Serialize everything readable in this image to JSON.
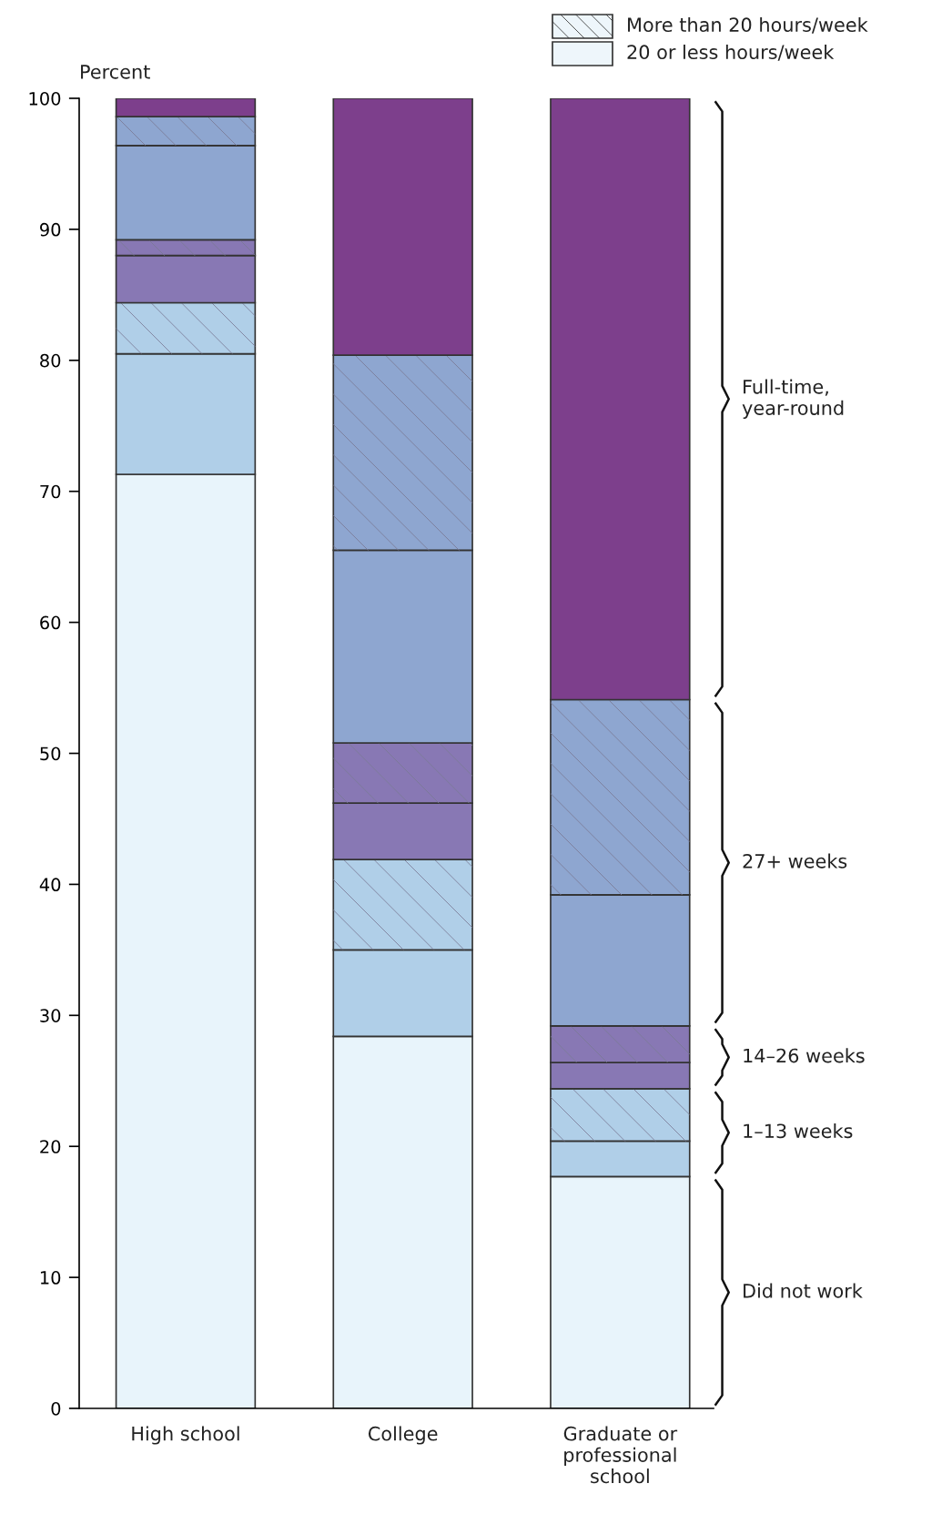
{
  "chart_data": {
    "type": "bar",
    "stacked": true,
    "ylabel": "Percent",
    "categories": [
      "High school",
      "College",
      "Graduate or professional school"
    ],
    "ylim": [
      0,
      100
    ],
    "yticks": [
      0,
      10,
      20,
      30,
      40,
      50,
      60,
      70,
      80,
      90,
      100
    ],
    "grid": false,
    "series": [
      {
        "color": "#e8f4fb",
        "values": [
          71.3,
          28.4,
          17.7
        ]
      },
      {
        "color": "#b0cfe8",
        "values": [
          9.2,
          6.6,
          2.7
        ]
      },
      {
        "color": "#b0cfe8",
        "values": [
          3.9,
          6.9,
          4.0
        ]
      },
      {
        "color": "#8878b4",
        "values": [
          3.6,
          4.3,
          2.0
        ]
      },
      {
        "color": "#8878b4",
        "values": [
          1.2,
          4.6,
          2.8
        ]
      },
      {
        "color": "#8ea6d0",
        "values": [
          7.2,
          14.7,
          10.0
        ]
      },
      {
        "color": "#8ea6d0",
        "values": [
          2.2,
          14.9,
          14.9
        ]
      },
      {
        "color": "#7d3f8c",
        "values": [
          1.4,
          19.6,
          45.9
        ]
      }
    ],
    "annotations": [
      "More than 20 hours/week",
      "20 or less hours/week",
      "Full-time,\nyear-round",
      "27+ weeks",
      "14–26 weeks",
      "1–13 weeks",
      "Did not work"
    ]
  }
}
